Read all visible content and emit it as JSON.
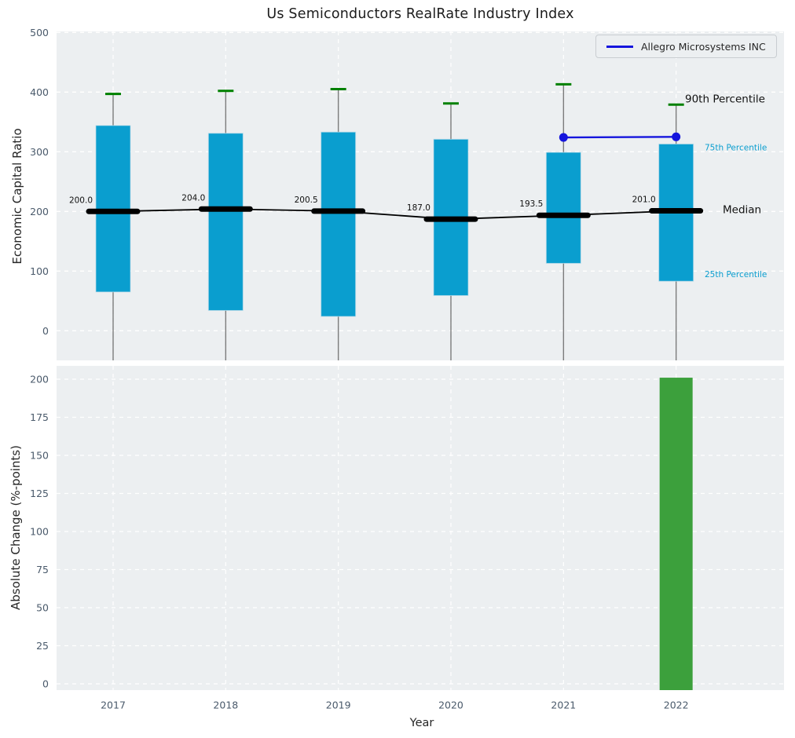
{
  "colors": {
    "plot_bg": "#eceff1",
    "grid": "#ffffff",
    "box_fill": "#0a9ecf",
    "box_edge": "#bfdde9",
    "cap_green": "#008000",
    "median_black": "#000000",
    "company_blue": "#1515dd",
    "change_bar_green": "#3ca03c",
    "whisker_gray": "#666666",
    "tick_label": "#4a5a6b",
    "annotation_cyan": "#0a9ecf",
    "annotation_black": "#111111"
  },
  "chart_data": [
    {
      "type": "box",
      "title": "Us Semiconductors RealRate Industry Index",
      "ylabel": "Economic Capital Ratio",
      "x": [
        2017,
        2018,
        2019,
        2020,
        2021,
        2022
      ],
      "series": {
        "p90": [
          397,
          402,
          405,
          381,
          413,
          379
        ],
        "p75": [
          344,
          331,
          333,
          321,
          299,
          313
        ],
        "median": [
          200.0,
          204.0,
          200.5,
          187.0,
          193.5,
          201.0
        ],
        "p25": [
          65,
          34,
          24,
          59,
          113,
          83
        ]
      },
      "median_labels": [
        "200.0",
        "204.0",
        "200.5",
        "187.0",
        "193.5",
        "201.0"
      ],
      "company_line": {
        "name": "Allegro Microsystems INC",
        "x": [
          2021,
          2022
        ],
        "y": [
          324,
          325
        ]
      },
      "annotations": [
        "90th Percentile",
        "75th Percentile",
        "Median",
        "25th Percentile"
      ],
      "yticks": [
        0,
        100,
        200,
        300,
        400,
        500
      ],
      "ylim": [
        -50,
        500
      ],
      "grid": true,
      "legend_position": "upper right"
    },
    {
      "type": "bar",
      "ylabel": "Absolute Change (%-points)",
      "xlabel": "Year",
      "categories": [
        2017,
        2018,
        2019,
        2020,
        2021,
        2022
      ],
      "values": [
        null,
        null,
        null,
        null,
        null,
        201.0
      ],
      "yticks": [
        0,
        25,
        50,
        75,
        100,
        125,
        150,
        175,
        200
      ],
      "ylim": [
        0,
        210
      ],
      "grid": true
    }
  ]
}
